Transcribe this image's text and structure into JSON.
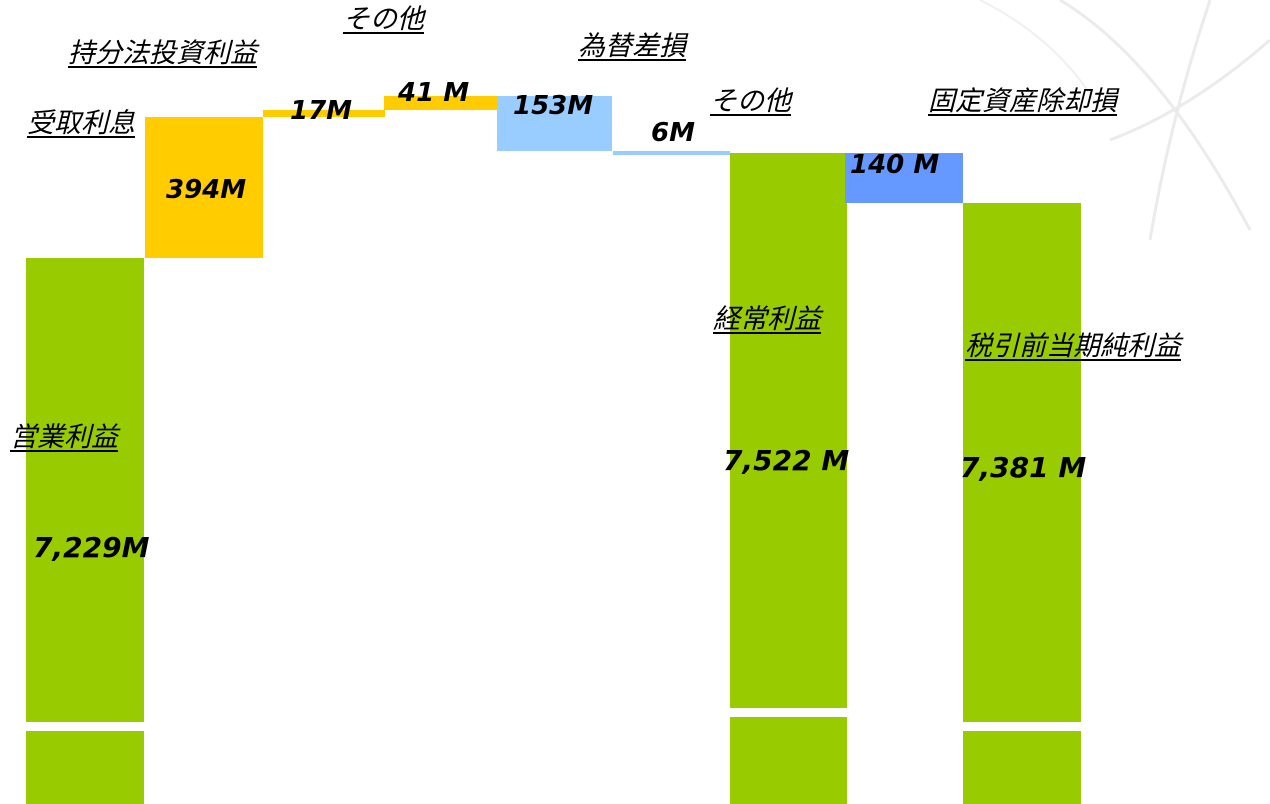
{
  "colors": {
    "result": "#99cc00",
    "increase": "#ffcc00",
    "decrease_light": "#99ccff",
    "decrease_dark": "#6699ff"
  },
  "chart_data": {
    "type": "bar",
    "subtype": "waterfall",
    "unit": "M",
    "categories": [
      "営業利益",
      "受取利息",
      "持分法投資利益",
      "その他",
      "為替差損",
      "その他",
      "経常利益",
      "固定資産除却損",
      "税引前当期純利益"
    ],
    "values": [
      7229,
      394,
      17,
      41,
      -153,
      -6,
      7522,
      -140,
      7381
    ],
    "value_labels": [
      "7,229M",
      "394M",
      "17M",
      "41 M",
      "153M",
      "6M",
      "7,522 M",
      "140 M",
      "7,381 M"
    ],
    "kinds": [
      "total",
      "increase",
      "increase",
      "increase",
      "decrease",
      "decrease",
      "total",
      "decrease",
      "total"
    ],
    "y_axis_broken": true
  }
}
